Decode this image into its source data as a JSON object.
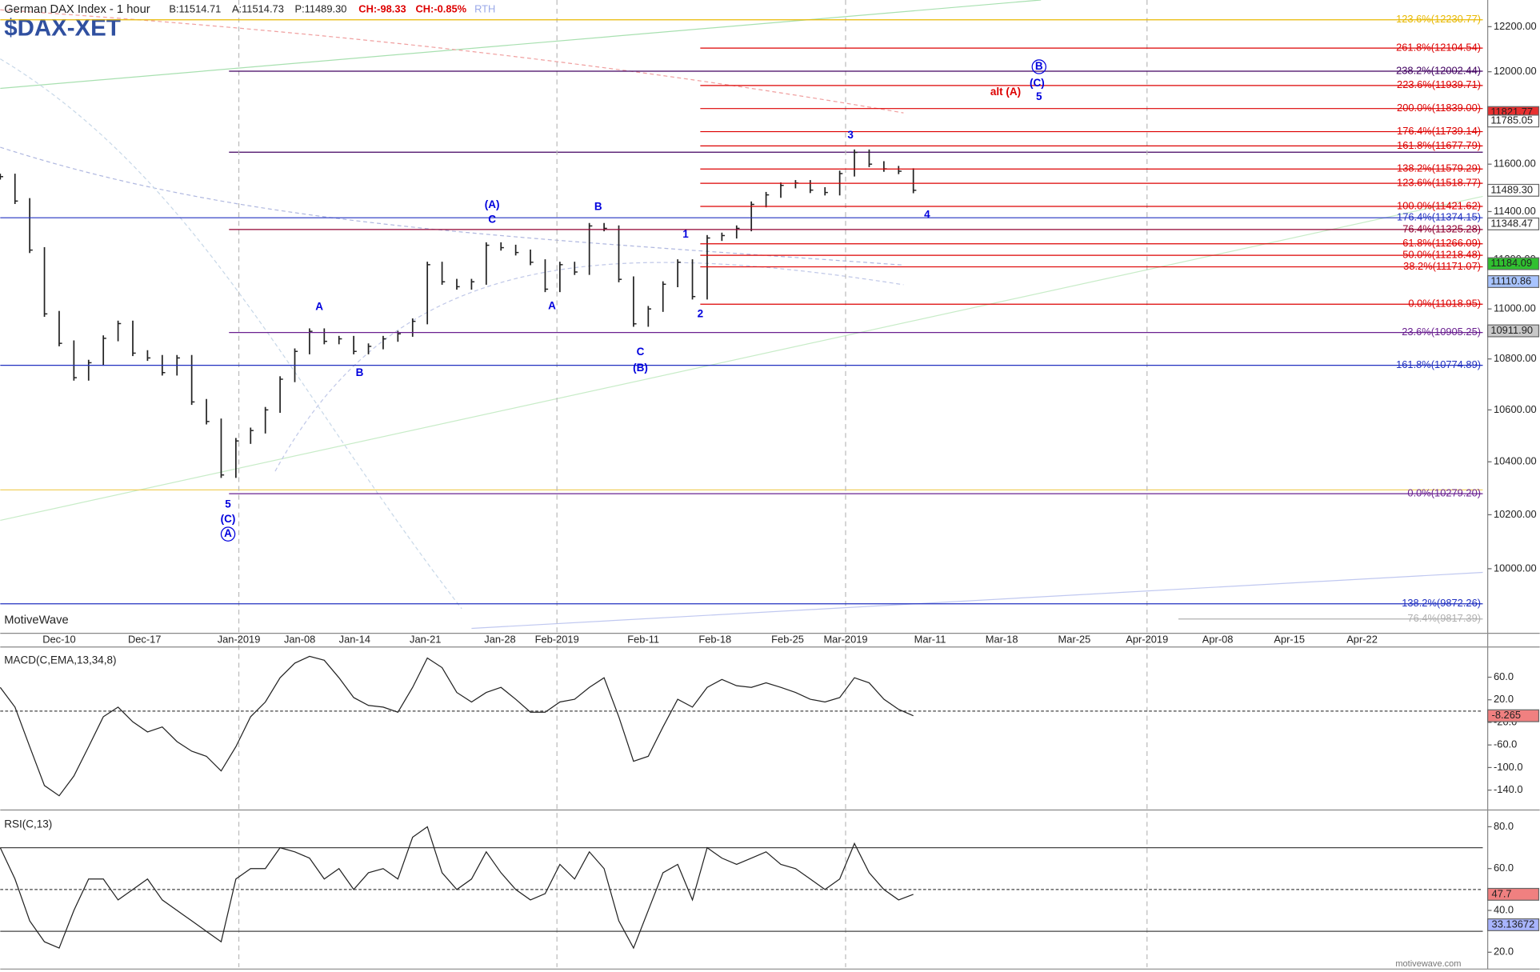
{
  "header": {
    "title": "German DAX Index - 1 hour",
    "bid": "B:11514.71",
    "ask": "A:11514.73",
    "price": "P:11489.30",
    "change": "CH:-98.33",
    "change_pct": "CH:-0.85%",
    "session": "RTH",
    "watermark": "MotiveWave",
    "site": "motivewave.com"
  },
  "chart_data": [
    {
      "type": "ohlc",
      "title": "$DAX-XET",
      "color": "#222222",
      "log_scale": true,
      "ylim": [
        9766,
        12320
      ],
      "x_labels": [
        "Dec-10",
        "Dec-17",
        "Jan-2019",
        "Jan-08",
        "Jan-14",
        "Jan-21",
        "Jan-28",
        "Feb-2019",
        "Feb-11",
        "Feb-18",
        "Feb-25",
        "Mar-2019",
        "Mar-11",
        "Mar-18",
        "Mar-25",
        "Apr-2019",
        "Apr-08",
        "Apr-15",
        "Apr-22"
      ],
      "values": [
        11547,
        11444,
        11240,
        10980,
        10862,
        10726,
        10785,
        10882,
        10941,
        10823,
        10804,
        10746,
        10804,
        10631,
        10555,
        10350,
        10480,
        10520,
        10600,
        10720,
        10830,
        10910,
        10870,
        10880,
        10830,
        10850,
        10880,
        10900,
        10950,
        11180,
        11110,
        11090,
        11110,
        11260,
        11250,
        11230,
        11190,
        11080,
        11180,
        11150,
        11340,
        11330,
        11120,
        10940,
        11000,
        11100,
        11190,
        11050,
        11290,
        11300,
        11330,
        11430,
        11470,
        11510,
        11520,
        11490,
        11480,
        11560,
        11650,
        11600,
        11580,
        11570,
        11489.3
      ],
      "yticks": [
        {
          "value": 10000,
          "label": "10000.00"
        },
        {
          "value": 10200,
          "label": "10200.00"
        },
        {
          "value": 10400,
          "label": "10400.00"
        },
        {
          "value": 10600,
          "label": "10600.00"
        },
        {
          "value": 10800,
          "label": "10800.00"
        },
        {
          "value": 11000,
          "label": "11000.00"
        },
        {
          "value": 11200,
          "label": "11200.00"
        },
        {
          "value": 11400,
          "label": "11400.00"
        },
        {
          "value": 11600,
          "label": "11600.00"
        },
        {
          "value": 11800,
          "label": "11800.00"
        },
        {
          "value": 12000,
          "label": "12000.00"
        },
        {
          "value": 12200,
          "label": "12200.00"
        }
      ],
      "fib_levels": [
        {
          "label": "123.6%(12230.77)",
          "price": 12230.77,
          "color": "#e8b800"
        },
        {
          "label": "261.8%(12104.54)",
          "price": 12104.54,
          "color": "#dd0000"
        },
        {
          "label": "238.2%(12002.44)",
          "price": 12002.44,
          "color": "#400060"
        },
        {
          "label": "223.6%(11939.71)",
          "price": 11939.71,
          "color": "#dd0000"
        },
        {
          "label": "200.0%(11839.00)",
          "price": 11839.0,
          "color": "#dd0000"
        },
        {
          "label": "176.4%(11739.14)",
          "price": 11739.14,
          "color": "#dd0000"
        },
        {
          "label": "161.8%(11677.79)",
          "price": 11677.79,
          "color": "#dd0000"
        },
        {
          "label": "138.2%(11579.29)",
          "price": 11579.29,
          "color": "#dd0000"
        },
        {
          "label": "123.6%(11518.77)",
          "price": 11518.77,
          "color": "#dd0000"
        },
        {
          "label": "100.0%(11421.62)",
          "price": 11421.62,
          "color": "#dd0000"
        },
        {
          "label": "176.4%(11374.15)",
          "price": 11374.15,
          "color": "#2030c0"
        },
        {
          "label": "76.4%(11325.28)",
          "price": 11325.28,
          "color": "#900030"
        },
        {
          "label": "61.8%(11266.09)",
          "price": 11266.09,
          "color": "#dd0000"
        },
        {
          "label": "50.0%(11218.48)",
          "price": 11218.48,
          "color": "#dd0000"
        },
        {
          "label": "38.2%(11171.07)",
          "price": 11171.07,
          "color": "#dd0000"
        },
        {
          "label": "0.0%(11018.95)",
          "price": 11018.95,
          "color": "#dd0000"
        },
        {
          "label": "23.6%(10905.25)",
          "price": 10905.25,
          "color": "#6a2090"
        },
        {
          "label": "161.8%(10774.89)",
          "price": 10774.89,
          "color": "#2030c0"
        },
        {
          "label": "0.0%(10279.20)",
          "price": 10279.2,
          "color": "#6a2090"
        },
        {
          "label": "138.2%(9872.26)",
          "price": 9872.26,
          "color": "#2030c0"
        },
        {
          "label": "76.4%(9817.39)",
          "price": 9817.39,
          "color": "#b0b0b0"
        }
      ],
      "price_tags": [
        {
          "price": 11821.77,
          "color": "#e83030"
        },
        {
          "price": 11785.05,
          "color": "#ffffff"
        },
        {
          "price": {
            "value": 11489.3,
            "label": "11489.30"
          },
          "color": "#ffffff"
        },
        {
          "price": 11348.47,
          "color": "#ffffff"
        },
        {
          "price": 11184.09,
          "color": "#30c030"
        },
        {
          "price": 11110.86,
          "color": "#a8c4ff"
        },
        {
          "price": {
            "value": 10911.9,
            "label": "10911.90"
          },
          "color": "#c8c8c8"
        }
      ],
      "wave_labels": [
        {
          "text": "(A)",
          "color": "#0000dd"
        },
        {
          "text": "C",
          "color": "#0000dd"
        },
        {
          "text": "B",
          "color": "#0000dd"
        },
        {
          "text": "1",
          "color": "#0000dd"
        },
        {
          "text": "2",
          "color": "#0000dd"
        },
        {
          "text": "3",
          "color": "#0000dd"
        },
        {
          "text": "4",
          "color": "#0000dd"
        },
        {
          "text": "5",
          "color": "#0000dd"
        },
        {
          "text": "(C)",
          "color": "#0000dd"
        },
        {
          "text": "A",
          "color": "#0000dd",
          "circled": true
        },
        {
          "text": "A",
          "color": "#0000dd"
        },
        {
          "text": "B",
          "color": "#0000dd"
        },
        {
          "text": "A",
          "color": "#0000dd"
        },
        {
          "text": "C",
          "color": "#0000dd"
        },
        {
          "text": "(B)",
          "color": "#0000dd"
        },
        {
          "text": "B",
          "color": "#0000dd",
          "circled": true
        },
        {
          "text": "(C)",
          "color": "#0000dd"
        },
        {
          "text": "5",
          "color": "#0000dd"
        },
        {
          "text": "alt (A)",
          "color": "#dd0000"
        }
      ]
    },
    {
      "type": "line",
      "title": "MACD(C,EMA,13,34,8)",
      "color": "#222222",
      "ylim": [
        -170,
        110
      ],
      "values": [
        42,
        7,
        -63,
        -132,
        -150,
        -115,
        -63,
        -10,
        7,
        -19,
        -37,
        -28,
        -54,
        -71,
        -80,
        -106,
        -63,
        -10,
        16,
        59,
        85,
        97,
        90,
        59,
        24,
        10,
        7,
        -2,
        42,
        94,
        77,
        33,
        16,
        33,
        42,
        21,
        -2,
        -2,
        16,
        21,
        42,
        59,
        -10,
        -89,
        -80,
        -28,
        21,
        7,
        42,
        56,
        45,
        42,
        50,
        42,
        33,
        21,
        16,
        24,
        59,
        50,
        21,
        3,
        -8.265
      ],
      "yticks": [
        {
          "value": 60,
          "label": "60.0"
        },
        {
          "value": 20,
          "label": "20.0"
        },
        {
          "value": -20,
          "label": "-20.0"
        },
        {
          "value": -60,
          "label": "-60.0"
        },
        {
          "value": -100,
          "label": "-100.0"
        },
        {
          "value": -140,
          "label": "-140.0"
        }
      ],
      "levels": [
        0
      ],
      "value_tags": [
        {
          "value": -8.265,
          "color": "#f08080"
        }
      ]
    },
    {
      "type": "line",
      "title": "RSI(C,13)",
      "color": "#222222",
      "ylim": [
        12.9,
        86.6
      ],
      "values": [
        70,
        55,
        35,
        25,
        22,
        40,
        55,
        55,
        45,
        50,
        55,
        45,
        40,
        35,
        30,
        25,
        55,
        60,
        60,
        70,
        68,
        65,
        55,
        60,
        50,
        58,
        60,
        55,
        75,
        80,
        58,
        50,
        55,
        68,
        58,
        50,
        45,
        48,
        62,
        55,
        68,
        60,
        35,
        22,
        40,
        58,
        62,
        45,
        70,
        65,
        62,
        65,
        68,
        62,
        60,
        55,
        50,
        55,
        72,
        58,
        50,
        45,
        47.7
      ],
      "yticks": [
        {
          "value": 80,
          "label": "80.0"
        },
        {
          "value": 60,
          "label": "60.0"
        },
        {
          "value": 40,
          "label": "40.0"
        },
        {
          "value": 20,
          "label": "20.0"
        }
      ],
      "levels": [
        70,
        50,
        30
      ],
      "value_tags": [
        {
          "value": 47.7,
          "color": "#f08080"
        },
        {
          "value": 33.13672,
          "color": "#a8b4ff"
        }
      ]
    }
  ]
}
